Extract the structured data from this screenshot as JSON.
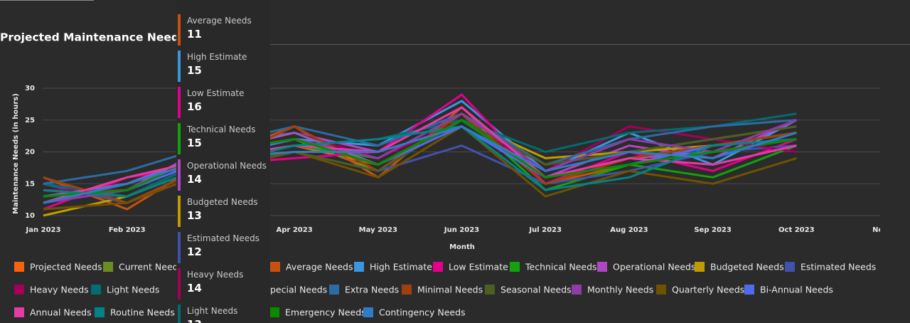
{
  "chart_data": {
    "type": "line",
    "title": "Projected Maintenance Needs O",
    "x_label": "Month",
    "y_label": "Maintenance Needs (in hours)",
    "categories": [
      "Jan 2023",
      "Feb 2023",
      null,
      "Apr 2023",
      "May 2023",
      "Jun 2023",
      "Jul 2023",
      "Aug 2023",
      "Sep 2023",
      "Oct 2023",
      "Nov"
    ],
    "ylim": [
      10,
      30
    ],
    "yticks": [
      10,
      15,
      20,
      25,
      30
    ],
    "grid": true,
    "legend": "bottom",
    "tooltip_category": 1,
    "series": [
      {
        "name": "Projected Needs",
        "color": "#f7630c",
        "values": [
          15,
          12,
          18,
          21,
          18,
          25,
          16,
          19,
          21,
          23,
          null
        ]
      },
      {
        "name": "Current Need",
        "color": "#6b8e23",
        "values": [
          14,
          13,
          19,
          22,
          17,
          26,
          18,
          20,
          22,
          24,
          null
        ]
      },
      {
        "name": "Average Needs",
        "color": "#ca5010",
        "values": [
          16,
          11,
          19,
          24,
          16,
          27,
          15,
          18,
          20,
          22,
          null
        ]
      },
      {
        "name": "High Estimate",
        "color": "#3a96dd",
        "values": [
          12,
          15,
          20,
          22,
          21,
          28,
          17,
          23,
          18,
          25,
          null
        ]
      },
      {
        "name": "Low Estimate",
        "color": "#e3008c",
        "values": [
          11,
          16,
          18,
          19,
          20,
          29,
          15,
          20,
          17,
          22,
          null
        ]
      },
      {
        "name": "Technical Needs",
        "color": "#13a10e",
        "values": [
          13,
          15,
          19,
          21,
          19,
          26,
          14,
          18,
          16,
          21,
          null
        ]
      },
      {
        "name": "Operational Needs",
        "color": "#b146c2",
        "values": [
          13,
          14,
          21,
          23,
          20,
          24,
          16,
          21,
          19,
          25,
          null
        ]
      },
      {
        "name": "Budgeted Needs",
        "color": "#c19c00",
        "values": [
          10,
          13,
          19,
          22,
          18,
          25,
          19,
          20,
          21,
          23,
          null
        ]
      },
      {
        "name": "Estimated Needs",
        "color": "#4052ab",
        "values": [
          15,
          12,
          17,
          20,
          17,
          21,
          15,
          17,
          20,
          21,
          null
        ]
      },
      {
        "name": "Heavy Needs",
        "color": "#a4005a",
        "values": [
          14,
          14,
          20,
          23,
          19,
          25,
          17,
          24,
          22,
          20,
          null
        ]
      },
      {
        "name": "Light Needs",
        "color": "#036c70",
        "values": [
          15,
          13,
          19,
          21,
          22,
          25,
          20,
          23,
          24,
          26,
          null
        ]
      },
      {
        "name": "pecial Needs",
        "color": "#8764b8",
        "values": [
          13,
          15,
          20,
          23,
          18,
          25,
          16,
          19,
          20,
          22,
          null
        ]
      },
      {
        "name": "Extra Needs",
        "color": "#2b6ca3",
        "values": [
          15,
          17,
          21,
          24,
          21,
          26,
          18,
          22,
          24,
          25,
          null
        ]
      },
      {
        "name": "Minimal Needs",
        "color": "#a0410d",
        "values": [
          16,
          12,
          18,
          24,
          17,
          26,
          15,
          19,
          21,
          23,
          null
        ]
      },
      {
        "name": "Seasonal Needs",
        "color": "#4b5e24",
        "values": [
          14,
          13,
          18,
          20,
          17,
          25,
          18,
          20,
          22,
          24,
          null
        ]
      },
      {
        "name": "Monthly Needs",
        "color": "#8e3ca6",
        "values": [
          12,
          14,
          20,
          22,
          19,
          26,
          17,
          22,
          20,
          25,
          null
        ]
      },
      {
        "name": "Quarterly Needs",
        "color": "#6d5200",
        "values": [
          11,
          12,
          17,
          20,
          16,
          24,
          13,
          17,
          15,
          19,
          null
        ]
      },
      {
        "name": "Bi-Annual Needs",
        "color": "#4f6bed",
        "values": [
          13,
          14,
          19,
          22,
          18,
          24,
          16,
          18,
          21,
          22,
          null
        ]
      },
      {
        "name": "Annual Needs",
        "color": "#e43ba6",
        "values": [
          12,
          16,
          19,
          21,
          20,
          27,
          16,
          19,
          18,
          21,
          null
        ]
      },
      {
        "name": "Routine Needs",
        "color": "#038387",
        "values": [
          14,
          13,
          18,
          21,
          22,
          24,
          14,
          16,
          21,
          22,
          null
        ]
      },
      {
        "name": "Emergency Needs",
        "color": "#0b8a00",
        "values": [
          13,
          14,
          20,
          22,
          18,
          25,
          16,
          18,
          20,
          22,
          null
        ]
      },
      {
        "name": "Contingency Needs",
        "color": "#2e7cc6",
        "values": [
          12,
          15,
          19,
          20,
          20,
          24,
          17,
          20,
          19,
          23,
          null
        ]
      }
    ]
  }
}
